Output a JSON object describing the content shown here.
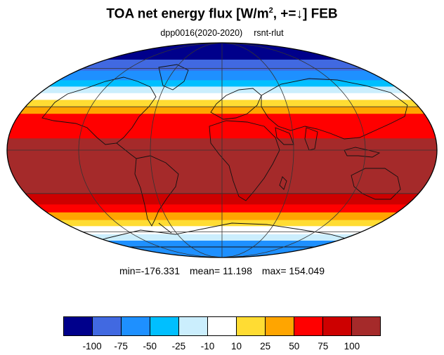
{
  "title": {
    "main": "TOA net energy flux  [W/m",
    "sup": "2",
    "rest": ", +=↓] FEB"
  },
  "subtitle": {
    "run": "dpp0016(2020-2020)",
    "variable": "rsnt-rlut"
  },
  "stats": {
    "min": "min=-176.331",
    "mean": "mean=  11.198",
    "max": "max= 154.049"
  },
  "colorbar": {
    "colors": [
      "#00008b",
      "#4169e1",
      "#1e90ff",
      "#00bfff",
      "#cbeefd",
      "#ffffff",
      "#ffdc33",
      "#ffa500",
      "#ff0000",
      "#cd0000",
      "#a52a2a"
    ],
    "ticks": [
      "-100",
      "-75",
      "-50",
      "-25",
      "-10",
      "10",
      "25",
      "50",
      "75",
      "100"
    ]
  },
  "map": {
    "projection": "mollweide",
    "ocean_land_outline": "coastlines",
    "zonal_bands": [
      {
        "lat_from": 90,
        "lat_to": 68,
        "value": -110
      },
      {
        "lat_from": 68,
        "lat_to": 58,
        "value": -80
      },
      {
        "lat_from": 58,
        "lat_to": 50,
        "value": -55
      },
      {
        "lat_from": 50,
        "lat_to": 45,
        "value": -30
      },
      {
        "lat_from": 45,
        "lat_to": 40,
        "value": -15
      },
      {
        "lat_from": 40,
        "lat_to": 35,
        "value": 0
      },
      {
        "lat_from": 35,
        "lat_to": 30,
        "value": 20
      },
      {
        "lat_from": 30,
        "lat_to": 25,
        "value": 40
      },
      {
        "lat_from": 25,
        "lat_to": 8,
        "value": 65
      },
      {
        "lat_from": 8,
        "lat_to": -30,
        "value": 110
      },
      {
        "lat_from": -30,
        "lat_to": -38,
        "value": 80
      },
      {
        "lat_from": -38,
        "lat_to": -44,
        "value": 60
      },
      {
        "lat_from": -44,
        "lat_to": -50,
        "value": 35
      },
      {
        "lat_from": -50,
        "lat_to": -55,
        "value": 15
      },
      {
        "lat_from": -55,
        "lat_to": -62,
        "value": 0
      },
      {
        "lat_from": -62,
        "lat_to": -68,
        "value": -15
      },
      {
        "lat_from": -68,
        "lat_to": -90,
        "value": -60
      }
    ]
  }
}
